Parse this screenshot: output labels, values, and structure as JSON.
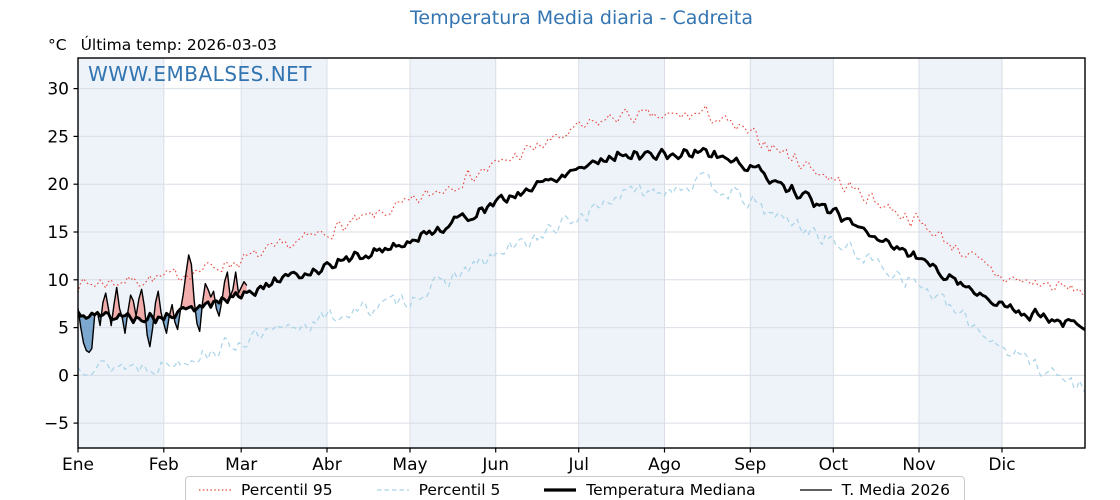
{
  "header": {
    "title": "Temperatura Media diaria - Cadreita",
    "unit_label": "°C",
    "last_temp_label": "Última temp: 2026-03-03",
    "watermark": "WWW.EMBALSES.NET",
    "title_color": "#3375b2",
    "watermark_color": "#3174b0"
  },
  "chart_data": {
    "type": "line",
    "title": "Temperatura Media diaria - Cadreita",
    "xlabel": "",
    "ylabel": "°C",
    "ylim": [
      -7.6,
      33.2
    ],
    "yticks": [
      30,
      25,
      20,
      15,
      10,
      5,
      0,
      -5
    ],
    "ytick_labels": [
      "30",
      "25",
      "20",
      "15",
      "10",
      "5",
      "0",
      "−5"
    ],
    "months": [
      "Ene",
      "Feb",
      "Mar",
      "Abr",
      "May",
      "Jun",
      "Jul",
      "Ago",
      "Sep",
      "Oct",
      "Nov",
      "Dic"
    ],
    "month_start_days": [
      1,
      32,
      60,
      91,
      121,
      152,
      182,
      213,
      244,
      274,
      305,
      335
    ],
    "days_in_year": 365,
    "grid": true,
    "band_color": "#eef3f9",
    "grid_color": "#d9dee6",
    "anchor_days": [
      1,
      32,
      60,
      91,
      121,
      152,
      182,
      197,
      213,
      228,
      244,
      274,
      305,
      335,
      365
    ],
    "series": [
      {
        "name": "Percentil 95",
        "color": "#e7473e",
        "style": "dotted",
        "width": 1.1,
        "anchor_values": [
          9.5,
          10.2,
          12.0,
          15.0,
          18.0,
          22.0,
          25.8,
          27.2,
          27.0,
          27.4,
          25.2,
          20.5,
          16.0,
          10.2,
          8.8
        ],
        "noise_amp": 0.95,
        "seed": 7
      },
      {
        "name": "Percentil 5",
        "color": "#a8d3e8",
        "style": "dashed",
        "width": 1.2,
        "anchor_values": [
          1.0,
          1.0,
          3.5,
          6.0,
          8.0,
          12.5,
          16.5,
          19.0,
          19.5,
          20.3,
          18.0,
          14.0,
          9.5,
          3.0,
          -1.5
        ],
        "noise_amp": 1.05,
        "seed": 13
      },
      {
        "name": "Temperatura Mediana",
        "color": "#000000",
        "style": "solid",
        "width": 2.9,
        "anchor_values": [
          6.3,
          6.0,
          8.5,
          11.5,
          14.0,
          18.0,
          21.8,
          23.2,
          23.0,
          23.4,
          21.8,
          17.0,
          12.2,
          7.2,
          5.0
        ],
        "noise_amp": 0.75,
        "seed": 5
      },
      {
        "name": "T. Media 2026",
        "color": "#000000",
        "style": "solid",
        "width": 1.4,
        "start_day": 1,
        "daily_values": [
          7.0,
          5.0,
          3.4,
          2.6,
          2.4,
          2.8,
          6.2,
          6.6,
          5.2,
          7.6,
          8.6,
          7.0,
          5.2,
          7.4,
          9.2,
          7.0,
          6.0,
          4.4,
          6.6,
          8.4,
          7.8,
          6.2,
          8.0,
          9.0,
          7.2,
          4.2,
          3.0,
          5.0,
          7.6,
          8.8,
          6.6,
          5.4,
          4.4,
          6.2,
          7.4,
          5.6,
          4.8,
          6.8,
          8.4,
          10.6,
          12.6,
          11.6,
          7.8,
          5.4,
          4.6,
          7.6,
          9.6,
          9.0,
          8.2,
          8.8,
          7.0,
          6.2,
          7.8,
          9.8,
          10.8,
          8.2,
          9.0,
          10.8,
          8.6,
          9.2,
          9.8,
          9.4
        ]
      }
    ],
    "fills": {
      "above_median_color": "#f0a09e",
      "above_alpha": 0.85,
      "below_median_color": "#6f9fca",
      "below_alpha": 0.9
    }
  },
  "legend": {
    "items": [
      {
        "label": "Percentil 95",
        "series": 0
      },
      {
        "label": "Percentil 5",
        "series": 1
      },
      {
        "label": "Temperatura Mediana",
        "series": 2
      },
      {
        "label": "T. Media 2026",
        "series": 3
      }
    ]
  }
}
